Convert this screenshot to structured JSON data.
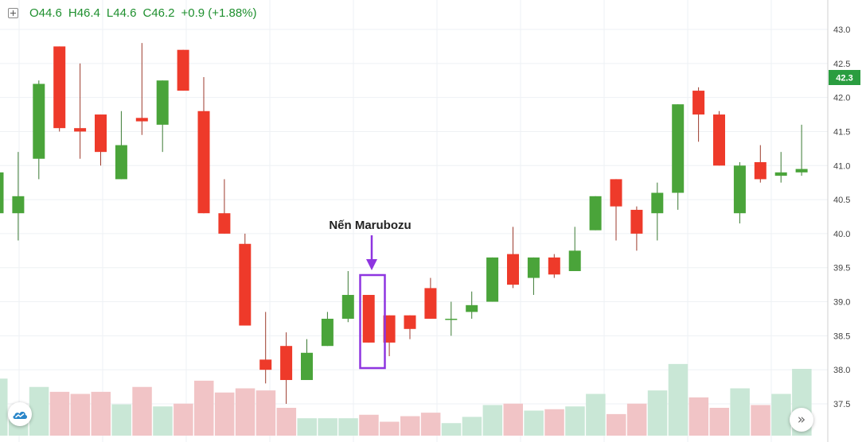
{
  "ohlc": {
    "open": "O44.6",
    "high": "H46.4",
    "low": "L44.6",
    "close": "C46.2",
    "change": "+0.9 (+1.88%)"
  },
  "annotation": {
    "label": "Nến Marubozu",
    "highlight_color": "#8e35e0"
  },
  "price_label": "42.3",
  "scroll_icon": "»",
  "icons": {
    "logo": "chart-logo-icon",
    "scroll": "double-chevron-right-icon"
  },
  "colors": {
    "up": "#4aa43a",
    "down": "#ee3a2a",
    "vol_up": "#c9e7d6",
    "vol_down": "#f1c4c6",
    "price_tag": "#2a9d40"
  },
  "chart_data": {
    "type": "candlestick",
    "title": "",
    "xlabel": "",
    "ylabel": "",
    "ylim": [
      37.3,
      43.4
    ],
    "y_ticks": [
      "37.5",
      "38.0",
      "38.5",
      "39.0",
      "39.5",
      "40.0",
      "40.5",
      "41.0",
      "41.5",
      "42.0",
      "42.5",
      "43.0"
    ],
    "grid": true,
    "last_price": 42.3,
    "annotated_index": 18,
    "candles": [
      {
        "o": 40.3,
        "h": 41.3,
        "l": 40.2,
        "c": 40.9
      },
      {
        "o": 40.3,
        "h": 41.2,
        "l": 39.9,
        "c": 40.55
      },
      {
        "o": 41.1,
        "h": 42.25,
        "l": 40.8,
        "c": 42.2
      },
      {
        "o": 42.75,
        "h": 42.75,
        "l": 41.5,
        "c": 41.55
      },
      {
        "o": 41.55,
        "h": 42.5,
        "l": 41.1,
        "c": 41.5
      },
      {
        "o": 41.75,
        "h": 41.75,
        "l": 41.0,
        "c": 41.2
      },
      {
        "o": 40.8,
        "h": 41.8,
        "l": 40.8,
        "c": 41.3
      },
      {
        "o": 41.7,
        "h": 42.8,
        "l": 41.45,
        "c": 41.65
      },
      {
        "o": 41.6,
        "h": 42.25,
        "l": 41.2,
        "c": 42.25
      },
      {
        "o": 42.7,
        "h": 42.7,
        "l": 42.1,
        "c": 42.1
      },
      {
        "o": 41.8,
        "h": 42.3,
        "l": 40.3,
        "c": 40.3
      },
      {
        "o": 40.3,
        "h": 40.8,
        "l": 40.0,
        "c": 40.0
      },
      {
        "o": 39.85,
        "h": 40.0,
        "l": 38.65,
        "c": 38.65
      },
      {
        "o": 38.15,
        "h": 38.85,
        "l": 37.8,
        "c": 38.0
      },
      {
        "o": 38.35,
        "h": 38.55,
        "l": 37.5,
        "c": 37.85
      },
      {
        "o": 37.85,
        "h": 38.45,
        "l": 37.85,
        "c": 38.25
      },
      {
        "o": 38.35,
        "h": 38.85,
        "l": 38.35,
        "c": 38.75
      },
      {
        "o": 38.75,
        "h": 39.45,
        "l": 38.7,
        "c": 39.1
      },
      {
        "o": 39.1,
        "h": 39.1,
        "l": 38.4,
        "c": 38.4
      },
      {
        "o": 38.8,
        "h": 38.8,
        "l": 38.2,
        "c": 38.4
      },
      {
        "o": 38.8,
        "h": 38.8,
        "l": 38.45,
        "c": 38.6
      },
      {
        "o": 39.2,
        "h": 39.35,
        "l": 38.75,
        "c": 38.75
      },
      {
        "o": 38.75,
        "h": 39.0,
        "l": 38.5,
        "c": 38.75
      },
      {
        "o": 38.85,
        "h": 39.15,
        "l": 38.75,
        "c": 38.95
      },
      {
        "o": 39.0,
        "h": 39.65,
        "l": 39.0,
        "c": 39.65
      },
      {
        "o": 39.7,
        "h": 40.1,
        "l": 39.2,
        "c": 39.25
      },
      {
        "o": 39.35,
        "h": 39.65,
        "l": 39.1,
        "c": 39.65
      },
      {
        "o": 39.65,
        "h": 39.7,
        "l": 39.35,
        "c": 39.4
      },
      {
        "o": 39.45,
        "h": 40.1,
        "l": 39.45,
        "c": 39.75
      },
      {
        "o": 40.05,
        "h": 40.55,
        "l": 40.05,
        "c": 40.55
      },
      {
        "o": 40.8,
        "h": 40.8,
        "l": 39.9,
        "c": 40.4
      },
      {
        "o": 40.35,
        "h": 40.4,
        "l": 39.75,
        "c": 40.0
      },
      {
        "o": 40.3,
        "h": 40.75,
        "l": 39.9,
        "c": 40.6
      },
      {
        "o": 40.6,
        "h": 41.9,
        "l": 40.35,
        "c": 41.9
      },
      {
        "o": 42.1,
        "h": 42.15,
        "l": 41.35,
        "c": 41.75
      },
      {
        "o": 41.75,
        "h": 41.8,
        "l": 41.0,
        "c": 41.0
      },
      {
        "o": 40.3,
        "h": 41.05,
        "l": 40.15,
        "c": 41.0
      },
      {
        "o": 41.05,
        "h": 41.3,
        "l": 40.75,
        "c": 40.8
      },
      {
        "o": 40.85,
        "h": 41.2,
        "l": 40.75,
        "c": 40.9
      },
      {
        "o": 40.9,
        "h": 41.6,
        "l": 40.85,
        "c": 40.95
      }
    ],
    "volume_ylim": [
      0,
      160
    ],
    "volume": [
      82,
      35,
      70,
      63,
      60,
      63,
      45,
      70,
      42,
      46,
      79,
      62,
      68,
      65,
      40,
      25,
      25,
      25,
      30,
      20,
      28,
      33,
      18,
      27,
      44,
      46,
      36,
      38,
      42,
      60,
      31,
      46,
      65,
      103,
      55,
      40,
      68,
      44,
      60,
      96
    ]
  }
}
